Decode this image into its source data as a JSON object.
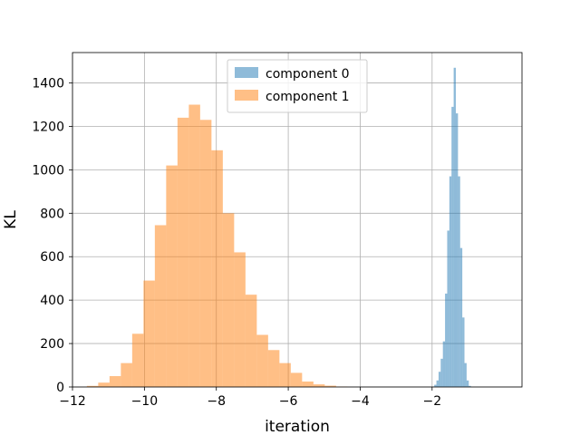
{
  "chart_data": {
    "type": "histogram",
    "xlabel": "iteration",
    "ylabel": "KL",
    "xlim": [
      -12.0,
      0.5
    ],
    "ylim": [
      0,
      1540
    ],
    "grid": true,
    "legend_position": "top-center",
    "xticks": [
      -12,
      -10,
      -8,
      -6,
      -4,
      -2
    ],
    "xtick_labels": [
      "−12",
      "−10",
      "−8",
      "−6",
      "−4",
      "−2"
    ],
    "yticks": [
      0,
      200,
      400,
      600,
      800,
      1000,
      1200,
      1400
    ],
    "ytick_labels": [
      "0",
      "200",
      "400",
      "600",
      "800",
      "1000",
      "1200",
      "1400"
    ],
    "series": [
      {
        "name": "component 0",
        "color": "#1f77b4",
        "opacity": 0.5,
        "bin_edges": [
          -2.0,
          -1.94,
          -1.88,
          -1.82,
          -1.76,
          -1.7,
          -1.64,
          -1.58,
          -1.52,
          -1.46,
          -1.4,
          -1.34,
          -1.28,
          -1.22,
          -1.16,
          -1.1,
          -1.04,
          -0.98,
          -0.92
        ],
        "counts": [
          2,
          10,
          30,
          70,
          130,
          210,
          430,
          720,
          970,
          1290,
          1470,
          1260,
          970,
          640,
          320,
          110,
          30,
          5
        ]
      },
      {
        "name": "component 1",
        "color": "#ff7f0e",
        "opacity": 0.5,
        "bin_edges": [
          -11.6,
          -11.285,
          -10.97,
          -10.655,
          -10.34,
          -10.025,
          -9.71,
          -9.395,
          -9.08,
          -8.765,
          -8.45,
          -8.135,
          -7.82,
          -7.505,
          -7.19,
          -6.875,
          -6.56,
          -6.245,
          -5.93,
          -5.615,
          -5.3,
          -4.985,
          -4.67,
          -4.355
        ],
        "counts": [
          5,
          20,
          50,
          110,
          245,
          490,
          745,
          1020,
          1240,
          1300,
          1230,
          1090,
          800,
          620,
          425,
          240,
          170,
          110,
          65,
          25,
          12,
          6,
          2
        ]
      }
    ]
  }
}
